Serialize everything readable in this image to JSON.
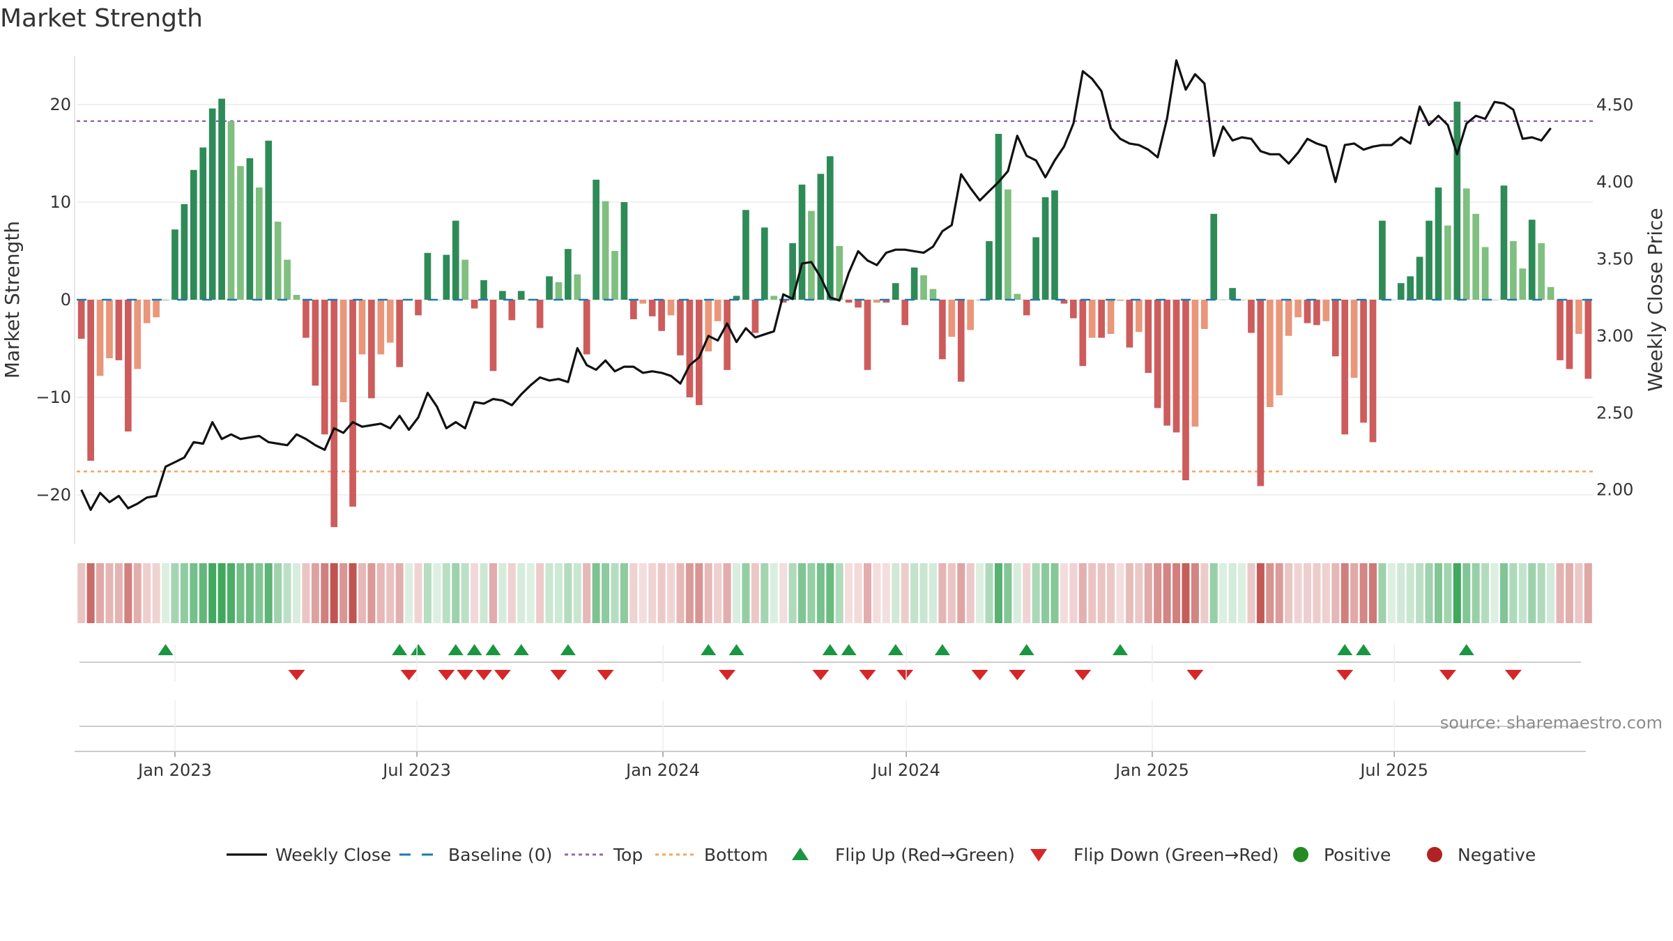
{
  "chart_data": {
    "type": "bar",
    "title": "Market Strength",
    "source": "source: sharemaestro.com",
    "y_left": {
      "label": "Market Strength",
      "range": [
        -25,
        25
      ],
      "ticks": [
        20,
        10,
        0,
        -10,
        -20
      ],
      "tick_labels": [
        "20",
        "10",
        "0",
        "−10",
        "−20"
      ]
    },
    "y_right": {
      "label": "Weekly Close Price",
      "range": [
        1.65,
        4.82
      ],
      "ticks": [
        2.0,
        2.5,
        3.0,
        3.5,
        4.0,
        4.5
      ],
      "tick_labels": [
        "2.00",
        "2.50",
        "3.00",
        "3.50",
        "4.00",
        "4.50"
      ]
    },
    "x_axis": {
      "start": "2022-10-23",
      "step_days": 7,
      "tick_dates": [
        "2023-01-01",
        "2023-07-01",
        "2024-01-01",
        "2024-07-01",
        "2025-01-01",
        "2025-07-01"
      ],
      "tick_labels": [
        "Jan 2023",
        "Jul 2023",
        "Jan 2024",
        "Jul 2024",
        "Jan 2025",
        "Jul 2025"
      ]
    },
    "top_line": 18.3,
    "bottom_line": -17.6,
    "strength": [
      -4,
      -16.5,
      -7.8,
      -6,
      -6.2,
      -13.5,
      -7.1,
      -2.4,
      -1.8,
      0,
      7.2,
      9.8,
      13.3,
      15.6,
      19.6,
      20.6,
      18.3,
      13.7,
      14.5,
      11.5,
      16.3,
      8,
      4.1,
      0.5,
      -3.9,
      -8.8,
      -13.8,
      -23.3,
      -10.5,
      -21.2,
      -5.6,
      -10.1,
      -5.6,
      -4.4,
      -6.9,
      0,
      -1.6,
      4.8,
      0,
      4.6,
      8.1,
      4.1,
      -0.9,
      2.0,
      -7.3,
      0.9,
      -2.1,
      0.9,
      0,
      -2.9,
      2.4,
      1.8,
      5.2,
      2.6,
      -5.6,
      12.3,
      10.1,
      5.0,
      10.0,
      -2.0,
      -0.4,
      -1.7,
      -3.2,
      -1.6,
      -5.7,
      -10.0,
      -10.8,
      -5.3,
      -2.2,
      -7.2,
      0.4,
      9.2,
      -3.4,
      7.4,
      0.4,
      -0.3,
      5.8,
      11.8,
      9.1,
      12.9,
      14.7,
      5.5,
      -0.3,
      -0.8,
      -7.2,
      -0.3,
      -0.3,
      1.7,
      -2.6,
      3.3,
      2.5,
      1.1,
      -6.1,
      -3.8,
      -8.4,
      -3.1,
      0,
      6.0,
      17.0,
      11.3,
      0.6,
      -1.6,
      6.4,
      10.5,
      11.2,
      -0.4,
      -1.9,
      -6.8,
      -3.9,
      -3.9,
      -3.5,
      -0.1,
      -4.9,
      -3.3,
      -7.5,
      -11.1,
      -12.9,
      -13.6,
      -18.5,
      -13.0,
      -3.0,
      8.8,
      0,
      1.2,
      0,
      -3.4,
      -19.1,
      -11.0,
      -9.8,
      -3.7,
      -1.8,
      -2.4,
      -2.6,
      -2.2,
      -5.8,
      -13.8,
      -8.0,
      -12.6,
      -14.6,
      8.1,
      0,
      1.7,
      2.4,
      4.4,
      8.1,
      11.5,
      7.6,
      20.3,
      11.4,
      8.8,
      5.4,
      0,
      11.7,
      6.0,
      3.2,
      8.2,
      5.8,
      1.3,
      -6.2,
      -7.1,
      -3.5,
      -8.1
    ],
    "weekly_close": [
      2.0,
      1.87,
      1.98,
      1.92,
      1.96,
      1.88,
      1.91,
      1.95,
      1.96,
      2.15,
      2.18,
      2.21,
      2.31,
      2.3,
      2.44,
      2.33,
      2.36,
      2.33,
      2.34,
      2.35,
      2.31,
      2.3,
      2.29,
      2.36,
      2.33,
      2.29,
      2.26,
      2.4,
      2.37,
      2.44,
      2.41,
      2.42,
      2.43,
      2.4,
      2.48,
      2.39,
      2.47,
      2.63,
      2.54,
      2.4,
      2.44,
      2.4,
      2.57,
      2.56,
      2.59,
      2.58,
      2.55,
      2.62,
      2.68,
      2.73,
      2.71,
      2.72,
      2.7,
      2.92,
      2.81,
      2.78,
      2.84,
      2.77,
      2.8,
      2.8,
      2.76,
      2.77,
      2.76,
      2.74,
      2.69,
      2.81,
      2.86,
      3.0,
      2.97,
      3.08,
      2.96,
      3.05,
      2.99,
      3.01,
      3.03,
      3.27,
      3.24,
      3.47,
      3.48,
      3.38,
      3.25,
      3.23,
      3.41,
      3.55,
      3.49,
      3.46,
      3.54,
      3.56,
      3.56,
      3.55,
      3.54,
      3.58,
      3.68,
      3.72,
      4.05,
      3.96,
      3.88,
      3.94,
      4.0,
      4.07,
      4.3,
      4.17,
      4.14,
      4.03,
      4.14,
      4.23,
      4.38,
      4.72,
      4.67,
      4.59,
      4.35,
      4.28,
      4.25,
      4.24,
      4.21,
      4.16,
      4.41,
      4.79,
      4.6,
      4.7,
      4.64,
      4.17,
      4.36,
      4.27,
      4.29,
      4.28,
      4.2,
      4.18,
      4.18,
      4.12,
      4.19,
      4.28,
      4.25,
      4.23,
      4.0,
      4.24,
      4.25,
      4.21,
      4.23,
      4.24,
      4.24,
      4.29,
      4.25,
      4.49,
      4.37,
      4.43,
      4.37,
      4.18,
      4.38,
      4.43,
      4.41,
      4.52,
      4.51,
      4.47,
      4.28,
      4.29,
      4.27,
      4.35
    ],
    "flip_up_weeks": [
      9,
      34,
      36,
      40,
      42,
      44,
      47,
      52,
      67,
      70,
      80,
      82,
      87,
      92,
      101,
      111,
      135,
      137,
      148
    ],
    "flip_down_weeks": [
      23,
      35,
      39,
      41,
      43,
      45,
      51,
      56,
      69,
      79,
      84,
      88,
      96,
      100,
      107,
      119,
      135,
      146,
      153
    ],
    "colors": {
      "bar_pos_strong": "#2e8b57",
      "bar_pos_weak": "#7fbf7f",
      "bar_neg_strong": "#cd5c5c",
      "bar_neg_weak": "#e9967a",
      "close_line": "#111111",
      "baseline": "#1f77b4",
      "top": "#9467bd",
      "bottom": "#f4a460",
      "flip_up": "#1a9641",
      "flip_down": "#d62728",
      "positive": "#228b22",
      "negative": "#b22222"
    },
    "legend": {
      "placement": "bottom",
      "items": [
        {
          "label": "Weekly Close",
          "kind": "line"
        },
        {
          "label": "Baseline (0)",
          "kind": "baseline"
        },
        {
          "label": "Top",
          "kind": "top"
        },
        {
          "label": "Bottom",
          "kind": "bottom"
        },
        {
          "label": "Flip Up (Red→Green)",
          "kind": "tri-up"
        },
        {
          "label": "Flip Down (Green→Red)",
          "kind": "tri-down"
        },
        {
          "label": "Positive",
          "kind": "dot-pos"
        },
        {
          "label": "Negative",
          "kind": "dot-neg"
        }
      ]
    }
  }
}
